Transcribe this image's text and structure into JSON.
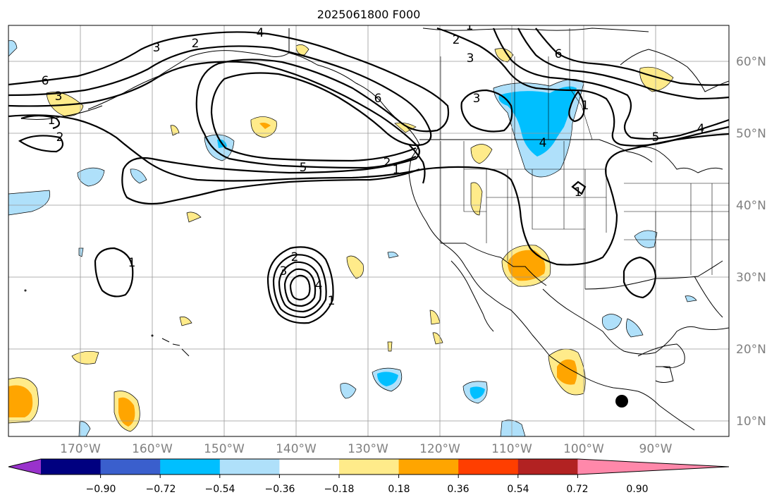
{
  "title": "2025061800 F000",
  "lon_labels": [
    "170°W",
    "160°W",
    "150°W",
    "140°W",
    "130°W",
    "120°W",
    "110°W",
    "100°W",
    "90°W"
  ],
  "lat_labels": [
    "60°N",
    "50°N",
    "40°N",
    "30°N",
    "20°N",
    "10°N"
  ],
  "colorbar": {
    "ticks": [
      "−0.90",
      "−0.72",
      "−0.54",
      "−0.36",
      "−0.18",
      "0.18",
      "0.36",
      "0.54",
      "0.72",
      "0.90"
    ],
    "colors": [
      "#9932cc",
      "#000080",
      "#3a5fcd",
      "#00bfff",
      "#afe0fa",
      "#ffffff",
      "#ffeb8a",
      "#ffa500",
      "#ff3e00",
      "#b22222",
      "#ff88aa"
    ]
  },
  "contour_labels": [
    "1",
    "2",
    "3",
    "4",
    "5",
    "6",
    "1",
    "2",
    "3",
    "4",
    "5",
    "6",
    "3",
    "6",
    "4",
    "5",
    "1",
    "1",
    "2",
    "3",
    "4",
    "1",
    "2",
    "1",
    "1",
    "2",
    "3"
  ],
  "colors": {
    "contour": "#000000",
    "grid": "#999999",
    "coast": "#000000",
    "label": "#808080"
  }
}
